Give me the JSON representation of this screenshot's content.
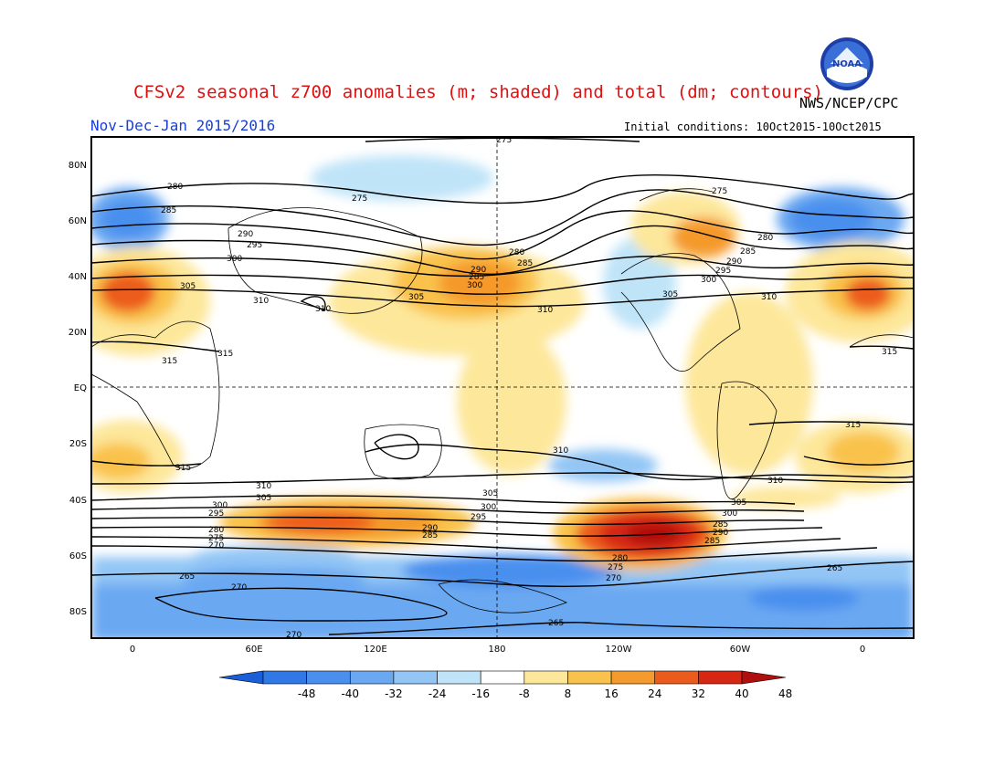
{
  "title": "CFSv2 seasonal z700 anomalies (m; shaded) and total (dm; contours)",
  "subtitle": "Nov-Dec-Jan 2015/2016",
  "agency": "NWS/NCEP/CPC",
  "initial_conditions": "Initial conditions: 10Oct2015-10Oct2015",
  "logo_text": "NOAA",
  "map": {
    "lat_labels": [
      "80N",
      "60N",
      "40N",
      "20N",
      "EQ",
      "20S",
      "40S",
      "60S",
      "80S"
    ],
    "lon_labels": [
      "0",
      "60E",
      "120E",
      "180",
      "120W",
      "60W",
      "0"
    ],
    "contour_labels": [
      "275",
      "280",
      "285",
      "290",
      "295",
      "300",
      "305",
      "310",
      "315",
      "265",
      "270"
    ]
  },
  "colorbar": {
    "ticks": [
      "-48",
      "-40",
      "-32",
      "-24",
      "-16",
      "-8",
      "8",
      "16",
      "24",
      "32",
      "40",
      "48"
    ],
    "colors": [
      "#1a5fd8",
      "#2f78e6",
      "#4a8fee",
      "#6aa8f2",
      "#93c6f5",
      "#bfe4f8",
      "#ffffff",
      "#fde79a",
      "#f9c24c",
      "#f59a2c",
      "#ec5b1e",
      "#d62614",
      "#b00f0f"
    ]
  }
}
